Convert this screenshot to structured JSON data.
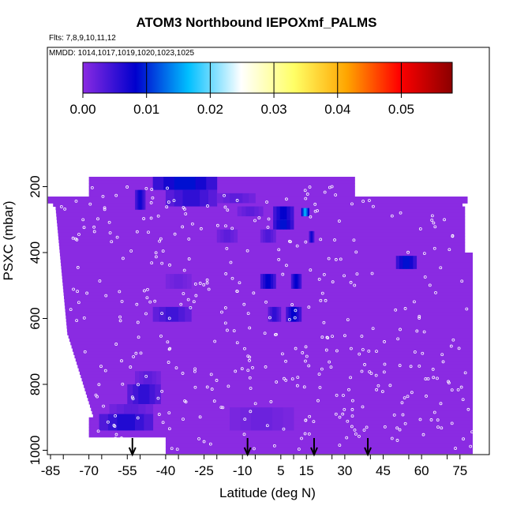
{
  "chart_data": {
    "type": "heatmap",
    "title": "ATOM3 Northbound IEPOXmf_PALMS",
    "flights_label": "Flts: 7,8,9,10,11,12",
    "dates_label": "MMDD: 1014,1017,1019,1020,1023,1025",
    "xlabel": "Latitude (deg N)",
    "ylabel": "PSXC (mbar)",
    "xlim": [
      -85,
      83
    ],
    "ylim": [
      1000,
      100
    ],
    "x_ticks": [
      -85,
      -70,
      -55,
      -40,
      -25,
      -10,
      5,
      15,
      30,
      45,
      60,
      75
    ],
    "y_ticks": [
      200,
      400,
      600,
      800,
      1000
    ],
    "colorbar": {
      "range": [
        0,
        0.058
      ],
      "ticks": [
        0.0,
        0.01,
        0.02,
        0.03,
        0.04,
        0.05
      ],
      "tick_labels": [
        "0.00",
        "0.01",
        "0.02",
        "0.03",
        "0.04",
        "0.05"
      ],
      "colors": [
        "#8a2be2",
        "#0000cd",
        "#00bfff",
        "#ffffff",
        "#ffff66",
        "#ffa500",
        "#ff0000",
        "#8b0000"
      ]
    },
    "background_value": 0.0,
    "elevated_cells": [
      {
        "lat": [
          -45,
          -20
        ],
        "p": [
          170,
          210
        ],
        "value": 0.01
      },
      {
        "lat": [
          -40,
          -20
        ],
        "p": [
          210,
          260
        ],
        "value": 0.006
      },
      {
        "lat": [
          -52,
          -48
        ],
        "p": [
          210,
          270
        ],
        "value": 0.008
      },
      {
        "lat": [
          -20,
          -5
        ],
        "p": [
          220,
          250
        ],
        "value": 0.003
      },
      {
        "lat": [
          -12,
          -2
        ],
        "p": [
          260,
          290
        ],
        "value": 0.003
      },
      {
        "lat": [
          2,
          10
        ],
        "p": [
          260,
          300
        ],
        "value": 0.009
      },
      {
        "lat": [
          2,
          10
        ],
        "p": [
          300,
          330
        ],
        "value": 0.01
      },
      {
        "lat": [
          13,
          16
        ],
        "p": [
          265,
          290
        ],
        "value": 0.017
      },
      {
        "lat": [
          -20,
          -12
        ],
        "p": [
          330,
          370
        ],
        "value": 0.003
      },
      {
        "lat": [
          -3,
          3
        ],
        "p": [
          330,
          370
        ],
        "value": 0.004
      },
      {
        "lat": [
          16,
          18
        ],
        "p": [
          335,
          370
        ],
        "value": 0.008
      },
      {
        "lat": [
          -3,
          3
        ],
        "p": [
          465,
          510
        ],
        "value": 0.009
      },
      {
        "lat": [
          9,
          13
        ],
        "p": [
          465,
          510
        ],
        "value": 0.009
      },
      {
        "lat": [
          50,
          58
        ],
        "p": [
          410,
          450
        ],
        "value": 0.01
      },
      {
        "lat": [
          -40,
          -30
        ],
        "p": [
          465,
          510
        ],
        "value": 0.002
      },
      {
        "lat": [
          -45,
          -30
        ],
        "p": [
          565,
          610
        ],
        "value": 0.005
      },
      {
        "lat": [
          0,
          5
        ],
        "p": [
          565,
          610
        ],
        "value": 0.006
      },
      {
        "lat": [
          7,
          13
        ],
        "p": [
          565,
          610
        ],
        "value": 0.009
      },
      {
        "lat": [
          -52,
          -42
        ],
        "p": [
          760,
          800
        ],
        "value": 0.003
      },
      {
        "lat": [
          -55,
          -42
        ],
        "p": [
          800,
          860
        ],
        "value": 0.006
      },
      {
        "lat": [
          -62,
          -45
        ],
        "p": [
          860,
          890
        ],
        "value": 0.003
      },
      {
        "lat": [
          -66,
          -45
        ],
        "p": [
          890,
          940
        ],
        "value": 0.007
      },
      {
        "lat": [
          -15,
          10
        ],
        "p": [
          870,
          940
        ],
        "value": 0.002
      }
    ],
    "takeoff_markers_lat": [
      -53,
      -8,
      18,
      39
    ]
  }
}
